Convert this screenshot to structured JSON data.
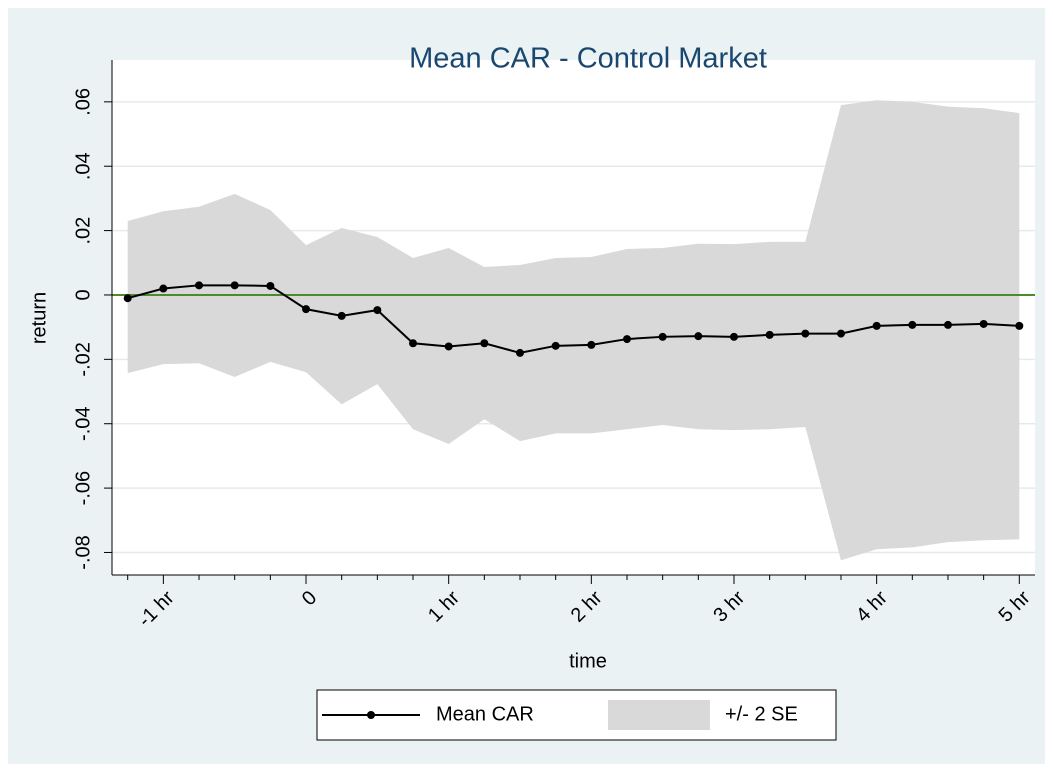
{
  "chart_data": {
    "type": "line_band",
    "title": "Mean CAR - Control Market",
    "xlabel": "time",
    "ylabel": "return",
    "x": [
      -1.25,
      -1,
      -0.75,
      -0.5,
      -0.25,
      0,
      0.25,
      0.5,
      0.75,
      1,
      1.25,
      1.5,
      1.75,
      2,
      2.25,
      2.5,
      2.75,
      3,
      3.25,
      3.5,
      3.75,
      4,
      4.25,
      4.5,
      4.75,
      5
    ],
    "series": [
      {
        "name": "Mean CAR",
        "color": "#000000",
        "values": [
          -0.001,
          0.002,
          0.003,
          0.003,
          0.0028,
          -0.0044,
          -0.0065,
          -0.0047,
          -0.015,
          -0.016,
          -0.015,
          -0.018,
          -0.0158,
          -0.0155,
          -0.0137,
          -0.013,
          -0.0128,
          -0.013,
          -0.0124,
          -0.012,
          -0.012,
          -0.0096,
          -0.0093,
          -0.0093,
          -0.009,
          -0.0096
        ]
      },
      {
        "name": "+/- 2 SE",
        "color": "#d9d9d9",
        "upper": [
          0.023,
          0.026,
          0.0274,
          0.0314,
          0.0264,
          0.0155,
          0.0208,
          0.018,
          0.0115,
          0.0146,
          0.0087,
          0.0093,
          0.0115,
          0.0118,
          0.0143,
          0.0146,
          0.0159,
          0.0158,
          0.0165,
          0.0165,
          0.059,
          0.0605,
          0.06,
          0.0585,
          0.058,
          0.0565
        ],
        "lower": [
          -0.0243,
          -0.0215,
          -0.0212,
          -0.0255,
          -0.0208,
          -0.024,
          -0.034,
          -0.0277,
          -0.0417,
          -0.0463,
          -0.0386,
          -0.0454,
          -0.043,
          -0.043,
          -0.0417,
          -0.0404,
          -0.0417,
          -0.042,
          -0.0417,
          -0.041,
          -0.0824,
          -0.079,
          -0.0784,
          -0.0768,
          -0.0762,
          -0.0759
        ]
      }
    ],
    "xlim": [
      -1.36,
      5.11
    ],
    "xticks": [
      {
        "value": -1,
        "label": "-1 hr"
      },
      0,
      {
        "value": 1,
        "label": "1 hr"
      },
      {
        "value": 2,
        "label": "2 hr"
      },
      {
        "value": 3,
        "label": "3 hr"
      },
      {
        "value": 4,
        "label": "4 hr"
      },
      {
        "value": 5,
        "label": "5 hr"
      }
    ],
    "xminorticks": [
      -1.25,
      -0.75,
      -0.5,
      -0.25,
      0.25,
      0.5,
      0.75,
      1.25,
      1.5,
      1.75,
      2.25,
      2.5,
      2.75,
      3.25,
      3.5,
      3.75,
      4.25,
      4.5,
      4.75
    ],
    "ylim": [
      -0.087,
      0.073
    ],
    "yticks": [
      {
        "value": -0.08,
        "label": "-.08"
      },
      {
        "value": -0.06,
        "label": "-.06"
      },
      {
        "value": -0.04,
        "label": "-.04"
      },
      {
        "value": -0.02,
        "label": "-.02"
      },
      0,
      {
        "value": 0.02,
        "label": ".02"
      },
      {
        "value": 0.04,
        "label": ".04"
      },
      {
        "value": 0.06,
        "label": ".06"
      }
    ],
    "grid": true,
    "yline": 0,
    "yline_color": "#4f8a2a",
    "legend": "bottom"
  }
}
